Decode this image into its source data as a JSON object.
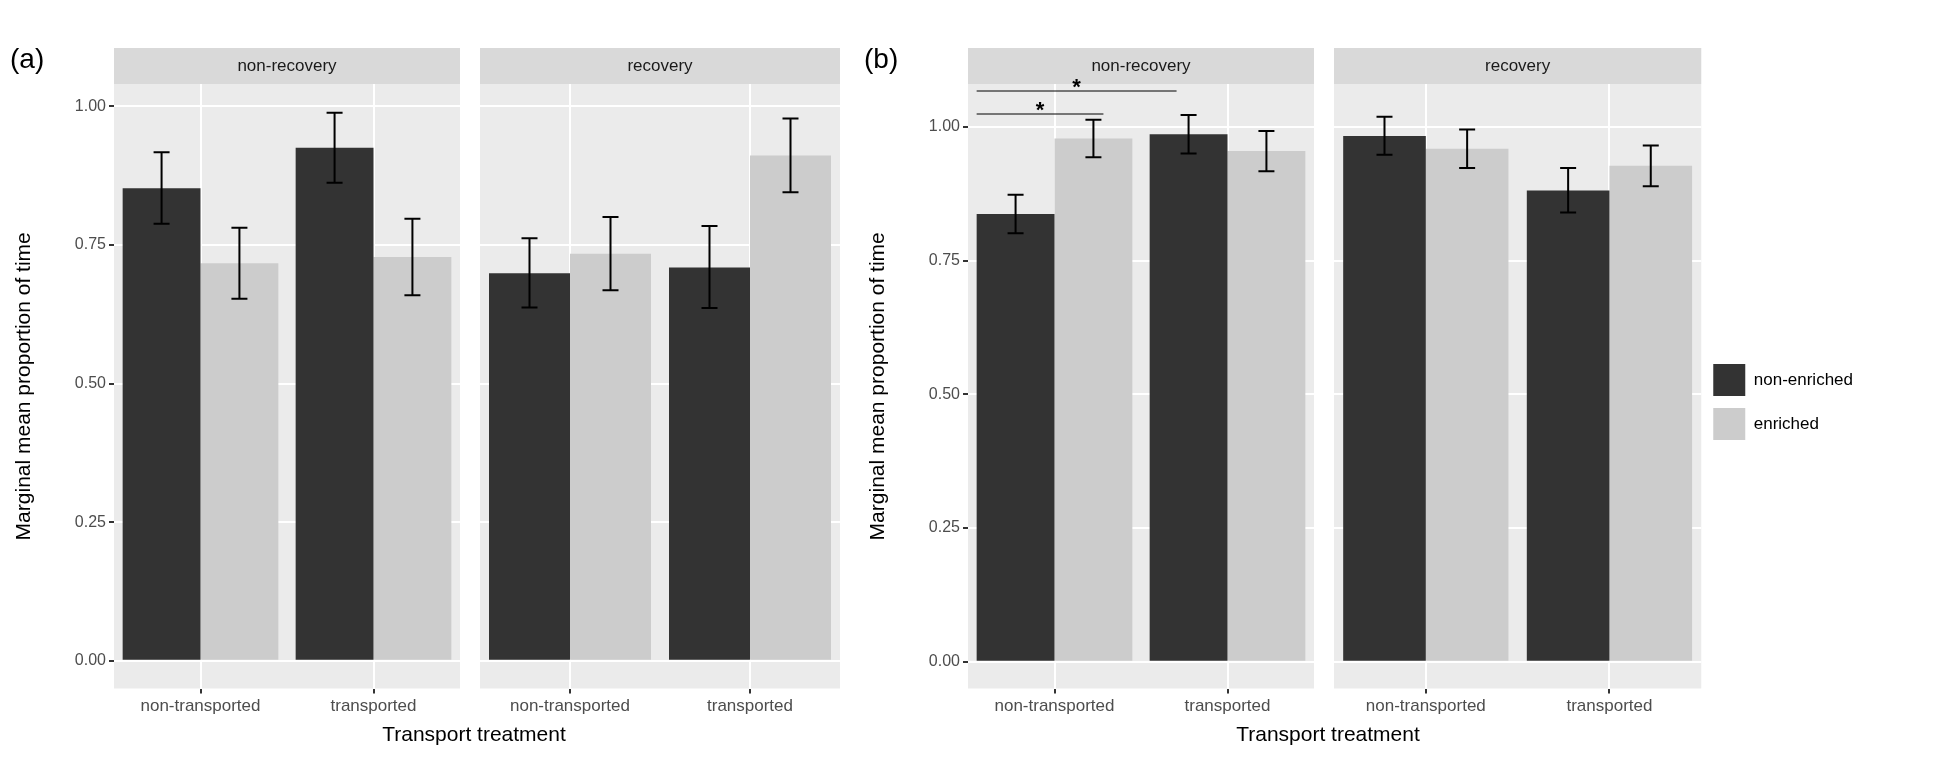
{
  "chart_data": [
    {
      "type": "bar",
      "title": "non-recovery",
      "ylabel": "Marginal mean proportion of time",
      "xlabel": "Transport treatment",
      "annotations": [
        "(a)"
      ],
      "categories": [
        "non-transported",
        "transported"
      ],
      "series": [
        {
          "color": "#333333",
          "values": [
            0.852,
            0.925
          ],
          "errors": [
            [
              0.788,
              0.917
            ],
            [
              0.862,
              0.988
            ]
          ]
        },
        {
          "color": "#cccccc",
          "values": [
            0.717,
            0.728
          ],
          "errors": [
            [
              0.653,
              0.781
            ],
            [
              0.659,
              0.797
            ]
          ]
        }
      ],
      "ylim": [
        -0.05,
        1.04
      ],
      "yticks": [
        {
          "value": 0,
          "label": "0.00"
        },
        {
          "value": 0.25,
          "label": "0.25"
        },
        {
          "value": 0.5,
          "label": "0.50"
        },
        {
          "value": 0.75,
          "label": "0.75"
        },
        {
          "value": 1,
          "label": "1.00"
        }
      ],
      "grid": true
    },
    {
      "type": "bar",
      "title": "recovery",
      "categories": [
        "non-transported",
        "transported"
      ],
      "series": [
        {
          "color": "#333333",
          "values": [
            0.699,
            0.709
          ],
          "errors": [
            [
              0.637,
              0.762
            ],
            [
              0.636,
              0.784
            ]
          ]
        },
        {
          "color": "#cccccc",
          "values": [
            0.734,
            0.911
          ],
          "errors": [
            [
              0.668,
              0.8
            ],
            [
              0.845,
              0.978
            ]
          ]
        }
      ],
      "ylim": [
        -0.05,
        1.04
      ],
      "yticks": [
        0,
        0.25,
        0.5,
        0.75,
        1
      ],
      "grid": true,
      "tick_labels": "x"
    },
    {
      "type": "bar",
      "title": "non-recovery",
      "ylabel": "Marginal mean proportion of time",
      "xlabel": "Transport treatment",
      "annotations": [
        "(b)",
        "*",
        "*"
      ],
      "categories": [
        "non-transported",
        "transported"
      ],
      "series": [
        {
          "color": "#333333",
          "values": [
            0.837,
            0.986
          ],
          "errors": [
            [
              0.801,
              0.873
            ],
            [
              0.95,
              1.022
            ]
          ]
        },
        {
          "color": "#cccccc",
          "values": [
            0.978,
            0.955
          ],
          "errors": [
            [
              0.943,
              1.013
            ],
            [
              0.917,
              0.992
            ]
          ]
        }
      ],
      "ylim": [
        -0.05,
        1.08
      ],
      "yticks": [
        {
          "value": 0,
          "label": "0.00"
        },
        {
          "value": 0.25,
          "label": "0.25"
        },
        {
          "value": 0.5,
          "label": "0.50"
        },
        {
          "value": 0.75,
          "label": "0.75"
        },
        {
          "value": 1,
          "label": "1.00"
        }
      ],
      "grid": true
    },
    {
      "type": "bar",
      "title": "recovery",
      "categories": [
        "non-transported",
        "transported"
      ],
      "series": [
        {
          "name": "non-enriched",
          "color": "#333333",
          "values": [
            0.983,
            0.881
          ],
          "errors": [
            [
              0.948,
              1.019
            ],
            [
              0.84,
              0.923
            ]
          ]
        },
        {
          "name": "enriched",
          "color": "#cccccc",
          "values": [
            0.959,
            0.927
          ],
          "errors": [
            [
              0.923,
              0.995
            ],
            [
              0.889,
              0.965
            ]
          ]
        }
      ],
      "ylim": [
        -0.05,
        1.08
      ],
      "yticks": [
        0,
        0.25,
        0.5,
        0.75,
        1
      ],
      "grid": true,
      "tick_labels": "x",
      "legend": "right"
    }
  ]
}
